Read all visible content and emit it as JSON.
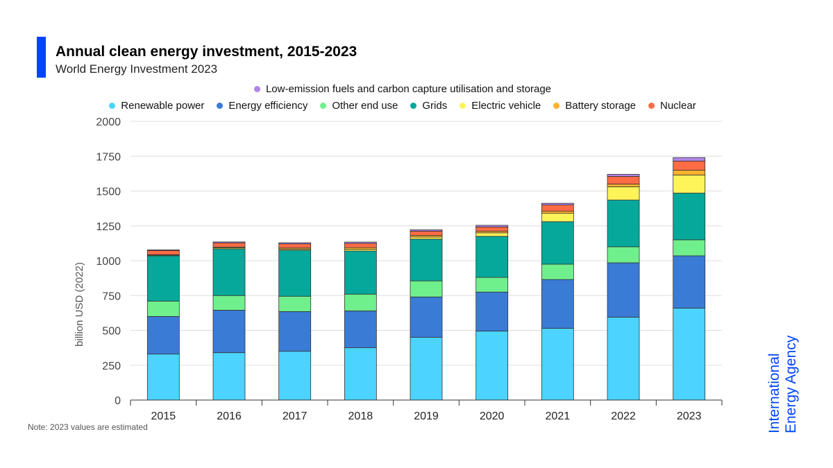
{
  "header": {
    "title": "Annual clean energy investment, 2015-2023",
    "subtitle": "World Energy Investment 2023"
  },
  "note": "Note: 2023 values are estimated",
  "logo": {
    "line1": "International",
    "line2": "Energy Agency",
    "color": "#0044ff"
  },
  "accent_color": "#0044ff",
  "chart_data": {
    "type": "bar",
    "stacked": true,
    "title": "Annual clean energy investment, 2015-2023",
    "subtitle": "World Energy Investment 2023",
    "xlabel": "",
    "ylabel": "billion USD (2022)",
    "ylim": [
      0,
      2000
    ],
    "yticks": [
      0,
      250,
      500,
      750,
      1000,
      1250,
      1500,
      1750,
      2000
    ],
    "grid": true,
    "legend_position": "top",
    "categories": [
      "2015",
      "2016",
      "2017",
      "2018",
      "2019",
      "2020",
      "2021",
      "2022",
      "2023"
    ],
    "series": [
      {
        "name": "Renewable power",
        "color": "#4cd3ff",
        "values": [
          330,
          340,
          350,
          375,
          450,
          495,
          515,
          595,
          660
        ]
      },
      {
        "name": "Energy efficiency",
        "color": "#3a7bd5",
        "values": [
          270,
          305,
          285,
          265,
          290,
          280,
          350,
          390,
          375
        ]
      },
      {
        "name": "Other end use",
        "color": "#6ff08c",
        "values": [
          110,
          105,
          110,
          120,
          115,
          105,
          110,
          115,
          115
        ]
      },
      {
        "name": "Grids",
        "color": "#06a89b",
        "values": [
          325,
          335,
          330,
          310,
          300,
          295,
          305,
          335,
          335
        ]
      },
      {
        "name": "Electric vehicle",
        "color": "#fff35a",
        "values": [
          5,
          8,
          8,
          12,
          15,
          25,
          60,
          95,
          130
        ]
      },
      {
        "name": "Battery storage",
        "color": "#ffb02e",
        "values": [
          3,
          5,
          8,
          12,
          12,
          12,
          15,
          20,
          35
        ]
      },
      {
        "name": "Nuclear",
        "color": "#ff6b45",
        "values": [
          30,
          30,
          30,
          30,
          30,
          30,
          45,
          55,
          65
        ]
      },
      {
        "name": "Low-emission fuels and carbon capture utilisation and storage",
        "color": "#b086e8",
        "values": [
          5,
          7,
          8,
          10,
          10,
          12,
          12,
          15,
          25
        ]
      }
    ]
  }
}
